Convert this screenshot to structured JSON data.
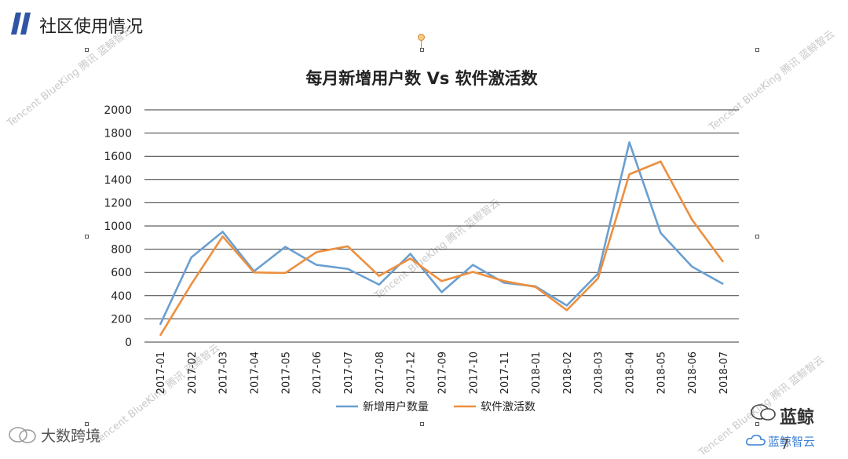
{
  "header": {
    "title": "社区使用情况",
    "accent_color": "#2f55a4"
  },
  "chart_data": {
    "type": "line",
    "title": "每月新增用户数 Vs 软件激活数",
    "xlabel": "",
    "ylabel": "",
    "ylim": [
      0,
      2000
    ],
    "yticks": [
      0,
      200,
      400,
      600,
      800,
      1000,
      1200,
      1400,
      1600,
      1800,
      2000
    ],
    "grid": true,
    "legend_position": "bottom",
    "categories": [
      "2017-01",
      "2017-02",
      "2017-03",
      "2017-04",
      "2017-05",
      "2017-06",
      "2017-07",
      "2017-08",
      "2017-12",
      "2017-09",
      "2017-10",
      "2017-11",
      "2018-01",
      "2018-02",
      "2018-03",
      "2018-04",
      "2018-05",
      "2018-06",
      "2018-07"
    ],
    "series": [
      {
        "name": "新增用户数量",
        "color": "#6a9fd1",
        "values": [
          150,
          730,
          950,
          610,
          820,
          665,
          630,
          495,
          760,
          430,
          665,
          510,
          480,
          315,
          590,
          1720,
          940,
          650,
          500
        ]
      },
      {
        "name": "软件激活数",
        "color": "#ed8f3f",
        "values": [
          55,
          500,
          910,
          600,
          595,
          775,
          825,
          570,
          720,
          525,
          605,
          525,
          475,
          275,
          550,
          1445,
          1555,
          1055,
          690
        ]
      }
    ]
  },
  "watermarks": [
    "Tencent BlueKing 腾讯 蓝鲸智云",
    "Tencent BlueKing 腾讯 蓝鲸智云",
    "Tencent BlueKing 腾讯 蓝鲸智云",
    "Tencent BlueKing 腾讯 蓝鲸智云",
    "Tencent BlueKing 腾讯 蓝鲸智云"
  ],
  "branding": {
    "left": "大数跨境",
    "right_title": "蓝鲸",
    "right_sub": "蓝鲸智云"
  },
  "page_number": "7"
}
